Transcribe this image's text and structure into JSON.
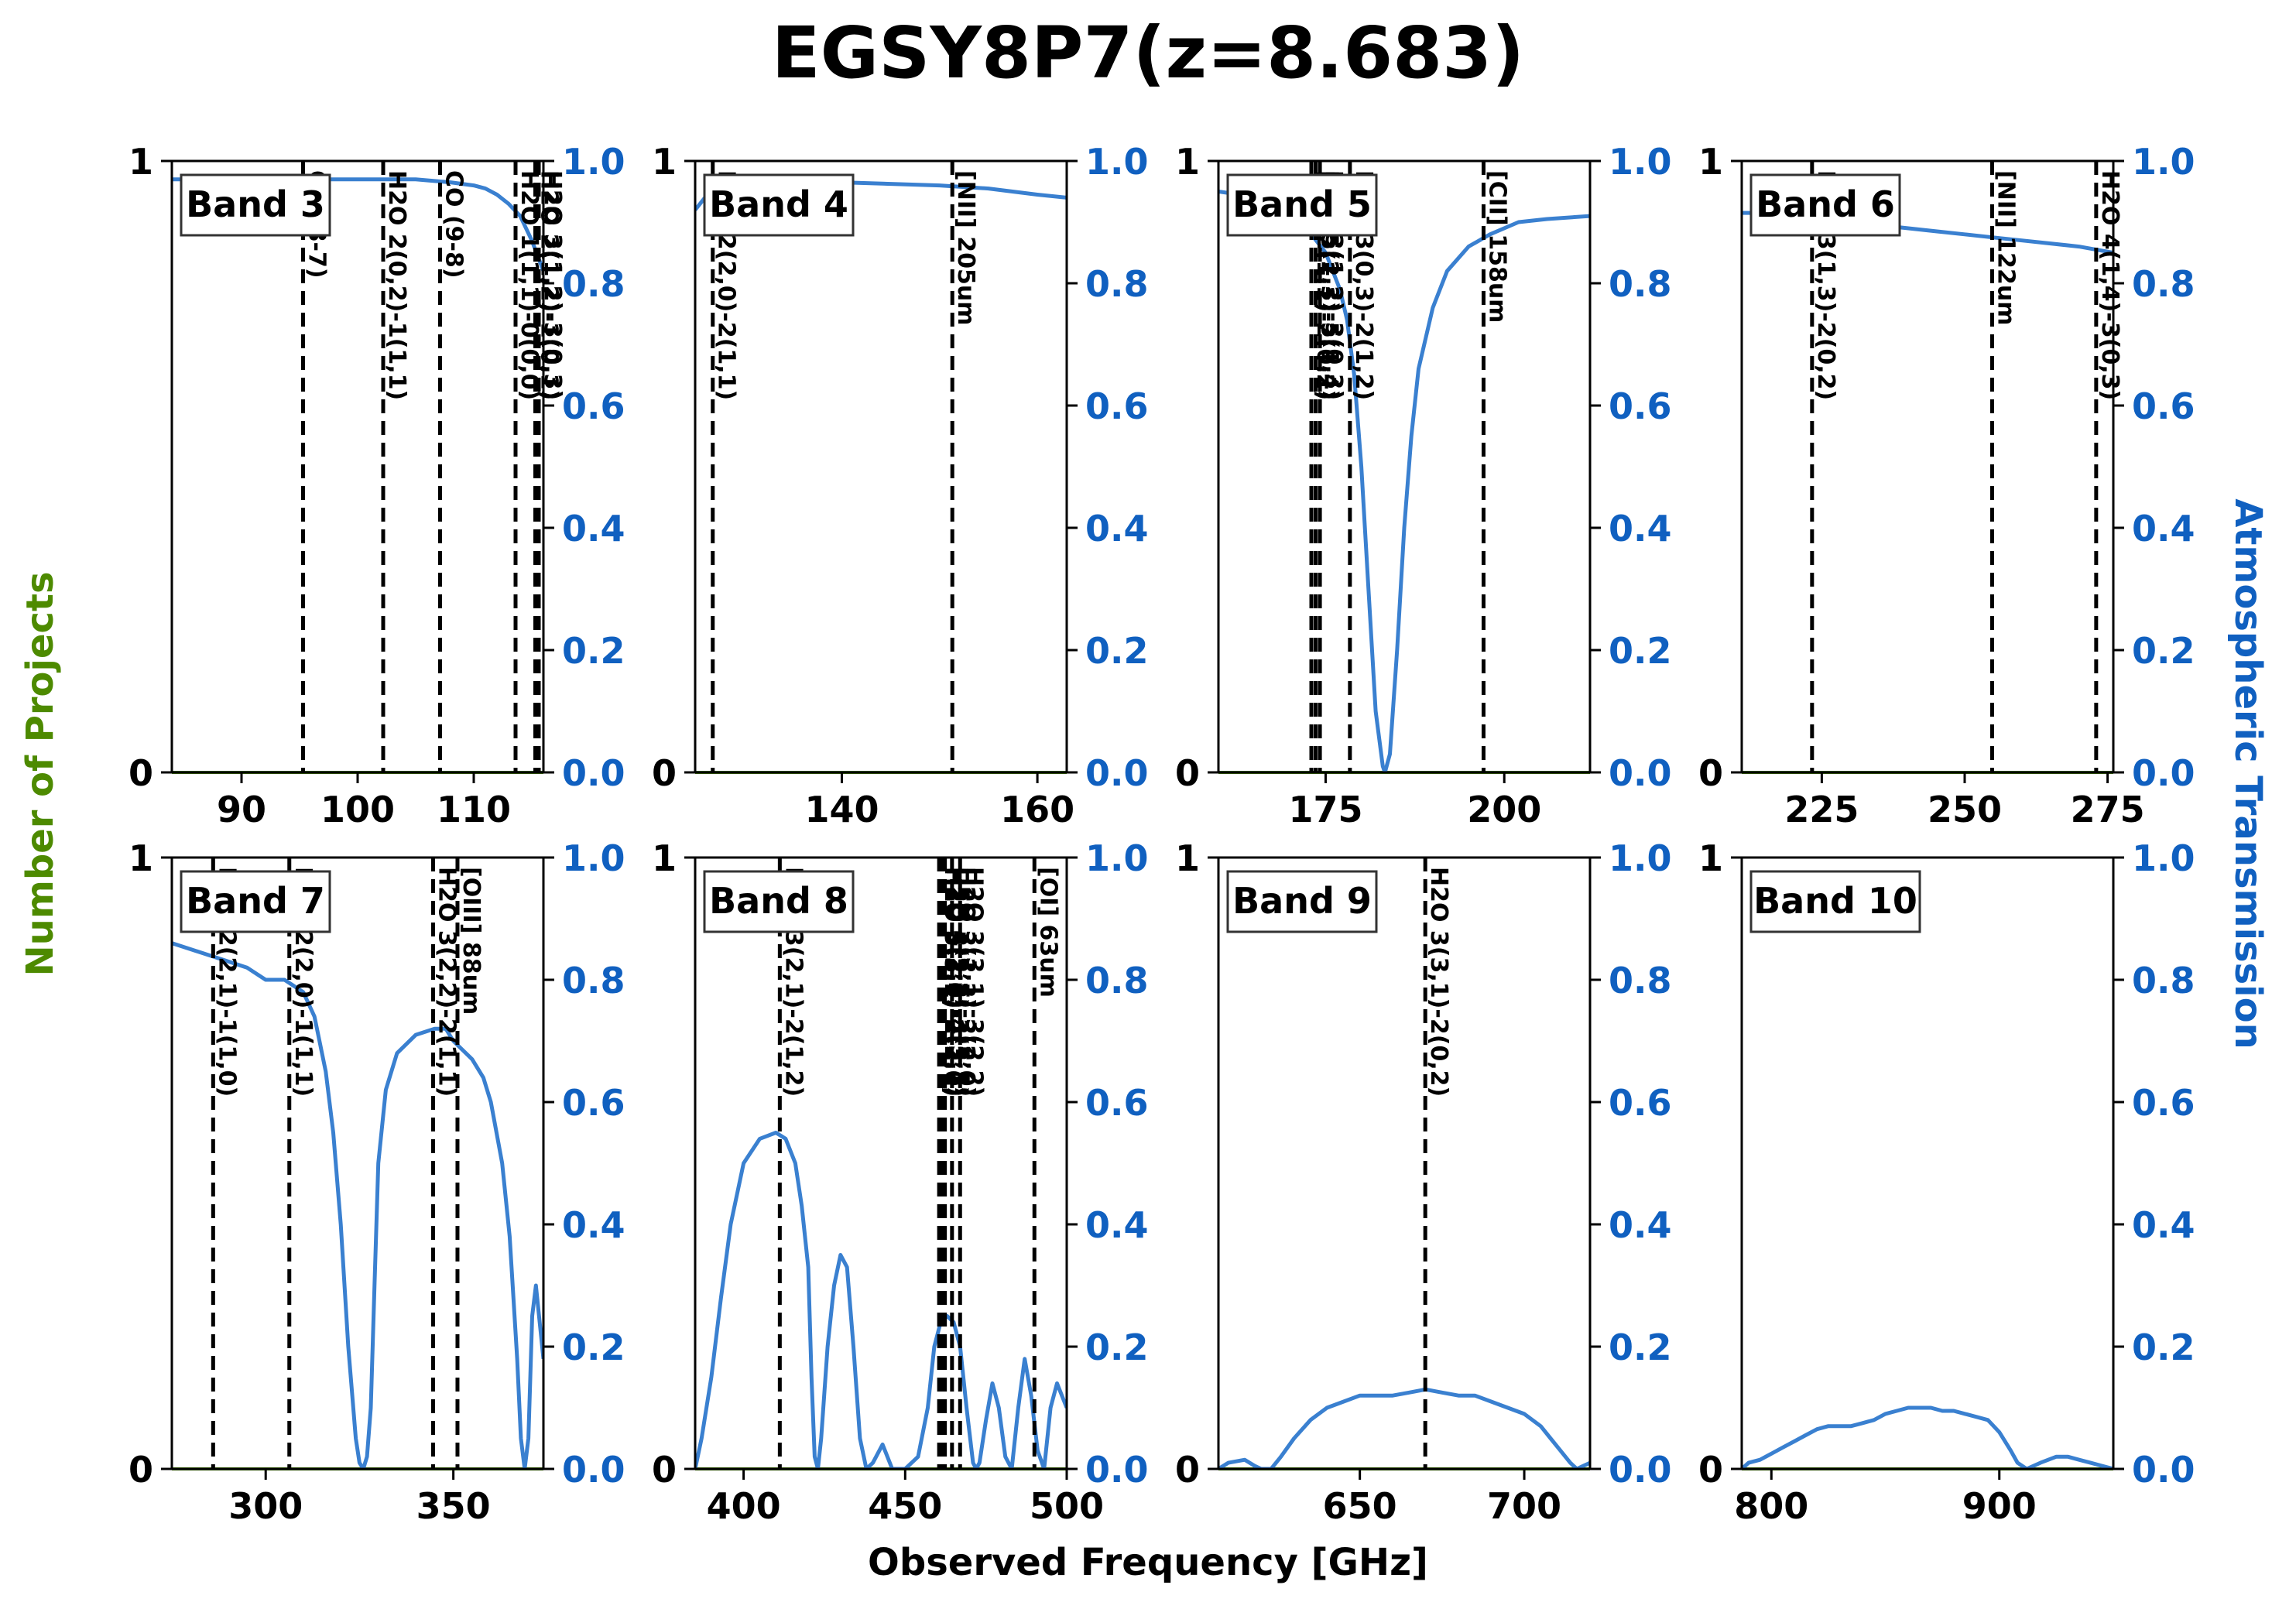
{
  "figure": {
    "title": "EGSY8P7(z=8.683)",
    "xlabel": "Observed Frequency [GHz]",
    "ylabel_left": "Number of Projects",
    "ylabel_right": "Atmospheric Transmission",
    "left_axis_color": "#4d8a00",
    "right_axis_color": "#1060c0",
    "curve_color": "#3a80d0",
    "line_color": "#000000"
  },
  "chart_data": [
    {
      "type": "line",
      "band": "Band 3",
      "xlim": [
        84,
        116
      ],
      "ylim_left": [
        0,
        1
      ],
      "ylim_right": [
        0,
        1
      ],
      "xticks": [
        90,
        100,
        110
      ],
      "left_ticks": [
        0,
        1
      ],
      "right_ticks": [
        "0.0",
        "0.2",
        "0.4",
        "0.6",
        "0.8",
        "1.0"
      ],
      "projects": 0,
      "lines": [
        {
          "freq": 95.3,
          "label": "CO (8-7)"
        },
        {
          "freq": 102.2,
          "label": "H2O 2(0,2)-1(1,1)"
        },
        {
          "freq": 107.1,
          "label": "CO (9-8)"
        },
        {
          "freq": 113.6,
          "label": "H2O 1(1,1)-0(0,0)"
        },
        {
          "freq": 115.3,
          "label": "H2O 2(1,2)-1(0,1)"
        },
        {
          "freq": 115.6,
          "label": "H2O 3(1,2)-3(0,3)"
        }
      ],
      "transmission": {
        "x": [
          84,
          90,
          100,
          105,
          108,
          110,
          111,
          112,
          113,
          114,
          115,
          116
        ],
        "y": [
          0.97,
          0.97,
          0.97,
          0.97,
          0.965,
          0.96,
          0.955,
          0.945,
          0.93,
          0.91,
          0.87,
          0.82
        ]
      }
    },
    {
      "type": "line",
      "band": "Band 4",
      "xlim": [
        125,
        163
      ],
      "ylim_left": [
        0,
        1
      ],
      "ylim_right": [
        0,
        1
      ],
      "xticks": [
        140,
        160
      ],
      "left_ticks": [
        0,
        1
      ],
      "right_ticks": [
        "0.0",
        "0.2",
        "0.4",
        "0.6",
        "0.8",
        "1.0"
      ],
      "projects": 0,
      "lines": [
        {
          "freq": 126.8,
          "label": "H2O 2(2,0)-2(1,1)"
        },
        {
          "freq": 151.3,
          "label": "[NII] 205um"
        }
      ],
      "transmission": {
        "x": [
          125,
          126,
          128,
          132,
          140,
          150,
          155,
          160,
          163
        ],
        "y": [
          0.92,
          0.94,
          0.955,
          0.96,
          0.965,
          0.96,
          0.955,
          0.945,
          0.94
        ]
      }
    },
    {
      "type": "line",
      "band": "Band 5",
      "xlim": [
        160,
        212
      ],
      "ylim_left": [
        0,
        1
      ],
      "ylim_right": [
        0,
        1
      ],
      "xticks": [
        175,
        200
      ],
      "left_ticks": [
        0,
        1
      ],
      "right_ticks": [
        "0.0",
        "0.2",
        "0.4",
        "0.6",
        "0.8",
        "1.0"
      ],
      "projects": 0,
      "lines": [
        {
          "freq": 173.0,
          "label": "H2O 2(1,1)-2(0,2)"
        },
        {
          "freq": 173.6,
          "label": "H2O 5(2,3)-5(1,4)"
        },
        {
          "freq": 174.2,
          "label": "H2O 3(1,2)-3(0,3)"
        },
        {
          "freq": 178.4,
          "label": "H2O 3(0,3)-2(1,2)"
        },
        {
          "freq": 197.1,
          "label": "[CII] 158um"
        }
      ],
      "transmission": {
        "x": [
          160,
          163,
          166,
          169,
          171,
          173,
          175,
          177,
          178,
          179,
          180,
          181,
          182,
          183,
          183.3,
          184,
          185,
          186,
          187,
          188,
          190,
          192,
          195,
          198,
          202,
          206,
          212
        ],
        "y": [
          0.95,
          0.945,
          0.935,
          0.92,
          0.905,
          0.88,
          0.85,
          0.79,
          0.74,
          0.65,
          0.5,
          0.3,
          0.1,
          0.01,
          0.0,
          0.03,
          0.2,
          0.4,
          0.55,
          0.66,
          0.76,
          0.82,
          0.86,
          0.88,
          0.9,
          0.905,
          0.91
        ]
      }
    },
    {
      "type": "line",
      "band": "Band 6",
      "xlim": [
        211,
        276
      ],
      "ylim_left": [
        0,
        1
      ],
      "ylim_right": [
        0,
        1
      ],
      "xticks": [
        225,
        250,
        275
      ],
      "left_ticks": [
        0,
        1
      ],
      "right_ticks": [
        "0.0",
        "0.2",
        "0.4",
        "0.6",
        "0.8",
        "1.0"
      ],
      "projects": 0,
      "lines": [
        {
          "freq": 223.3,
          "label": "H2O 3(1,3)-2(0,2)"
        },
        {
          "freq": 254.8,
          "label": "[NII] 122um"
        },
        {
          "freq": 273.0,
          "label": "H2O 4(1,4)-3(0,3)"
        }
      ],
      "transmission": {
        "x": [
          211,
          215,
          220,
          225,
          230,
          235,
          240,
          245,
          250,
          255,
          260,
          265,
          270,
          276
        ],
        "y": [
          0.915,
          0.915,
          0.912,
          0.905,
          0.9,
          0.895,
          0.89,
          0.885,
          0.88,
          0.875,
          0.87,
          0.865,
          0.86,
          0.85
        ]
      }
    },
    {
      "type": "line",
      "band": "Band 7",
      "xlim": [
        275,
        374
      ],
      "ylim_left": [
        0,
        1
      ],
      "ylim_right": [
        0,
        1
      ],
      "xticks": [
        300,
        350
      ],
      "left_ticks": [
        0,
        1
      ],
      "right_ticks": [
        "0.0",
        "0.2",
        "0.4",
        "0.6",
        "0.8",
        "1.0"
      ],
      "projects": 0,
      "lines": [
        {
          "freq": 286.0,
          "label": "H2O 2(2,1)-1(1,0)"
        },
        {
          "freq": 306.3,
          "label": "H2O 2(2,0)-1(1,1)"
        },
        {
          "freq": 344.6,
          "label": "H2O 3(2,2)-2(1,1)"
        },
        {
          "freq": 351.1,
          "label": "[OIII] 88um"
        }
      ],
      "transmission": {
        "x": [
          275,
          280,
          285,
          290,
          295,
          300,
          305,
          310,
          313,
          316,
          318,
          320,
          322,
          324,
          325,
          326,
          327,
          328,
          329,
          330,
          332,
          335,
          340,
          345,
          348,
          350,
          355,
          358,
          360,
          363,
          365,
          367,
          368,
          369,
          370,
          371,
          372,
          374
        ],
        "y": [
          0.86,
          0.85,
          0.84,
          0.83,
          0.82,
          0.8,
          0.8,
          0.78,
          0.74,
          0.65,
          0.55,
          0.4,
          0.2,
          0.05,
          0.01,
          0.0,
          0.02,
          0.1,
          0.3,
          0.5,
          0.62,
          0.68,
          0.71,
          0.72,
          0.72,
          0.7,
          0.67,
          0.64,
          0.6,
          0.5,
          0.38,
          0.18,
          0.05,
          0.0,
          0.05,
          0.25,
          0.3,
          0.18
        ]
      }
    },
    {
      "type": "line",
      "band": "Band 8",
      "xlim": [
        385,
        500
      ],
      "ylim_left": [
        0,
        1
      ],
      "ylim_right": [
        0,
        1
      ],
      "xticks": [
        400,
        450,
        500
      ],
      "left_ticks": [
        0,
        1
      ],
      "right_ticks": [
        "0.0",
        "0.2",
        "0.4",
        "0.6",
        "0.8",
        "1.0"
      ],
      "projects": 0,
      "lines": [
        {
          "freq": 411.2,
          "label": "H2O 3(2,1)-2(1,2)"
        },
        {
          "freq": 460.5,
          "label": "H2O 3(3,1)-2(2,0)"
        },
        {
          "freq": 461.0,
          "label": "H2O 3(3,0)-2(2,1)"
        },
        {
          "freq": 461.6,
          "label": "H2O 5(2,3)-4(3,2)"
        },
        {
          "freq": 462.3,
          "label": "H2O 4(2,2)-3(3,1)"
        },
        {
          "freq": 464.5,
          "label": "H2O 3(1,3)-2(2,0)"
        },
        {
          "freq": 467.0,
          "label": "H2O 3(3,1)-3(2,2)"
        },
        {
          "freq": 490.0,
          "label": "[OI] 63um"
        }
      ],
      "transmission": {
        "x": [
          385,
          387,
          390,
          393,
          396,
          400,
          405,
          410,
          413,
          416,
          418,
          420,
          421,
          422,
          423,
          424,
          426,
          428,
          430,
          432,
          434,
          436,
          438,
          440,
          443,
          446,
          450,
          454,
          457,
          459,
          461,
          463,
          465,
          467,
          469,
          471,
          472,
          473,
          475,
          477,
          479,
          481,
          483,
          485,
          487,
          489,
          491,
          493,
          495,
          497,
          500
        ],
        "y": [
          0.0,
          0.05,
          0.15,
          0.28,
          0.4,
          0.5,
          0.54,
          0.55,
          0.54,
          0.5,
          0.43,
          0.33,
          0.15,
          0.02,
          0.0,
          0.05,
          0.2,
          0.3,
          0.35,
          0.33,
          0.2,
          0.05,
          0.0,
          0.01,
          0.04,
          0.0,
          0.0,
          0.02,
          0.1,
          0.2,
          0.24,
          0.25,
          0.24,
          0.2,
          0.1,
          0.01,
          0.0,
          0.01,
          0.08,
          0.14,
          0.1,
          0.02,
          0.0,
          0.1,
          0.18,
          0.12,
          0.03,
          0.0,
          0.1,
          0.14,
          0.1
        ]
      }
    },
    {
      "type": "line",
      "band": "Band 9",
      "xlim": [
        607,
        720
      ],
      "ylim_left": [
        0,
        1
      ],
      "ylim_right": [
        0,
        1
      ],
      "xticks": [
        650,
        700
      ],
      "left_ticks": [
        0,
        1
      ],
      "right_ticks": [
        "0.0",
        "0.2",
        "0.4",
        "0.6",
        "0.8",
        "1.0"
      ],
      "projects": 0,
      "lines": [
        {
          "freq": 669.9,
          "label": "H2O 3(3,1)-2(0,2)"
        }
      ],
      "transmission": {
        "x": [
          607,
          610,
          615,
          618,
          620,
          623,
          626,
          630,
          635,
          640,
          645,
          650,
          655,
          660,
          665,
          670,
          675,
          680,
          685,
          690,
          695,
          700,
          705,
          708,
          711,
          714,
          716,
          718,
          720
        ],
        "y": [
          0.0,
          0.01,
          0.015,
          0.005,
          0.0,
          0.0,
          0.02,
          0.05,
          0.08,
          0.1,
          0.11,
          0.12,
          0.12,
          0.12,
          0.125,
          0.13,
          0.125,
          0.12,
          0.12,
          0.11,
          0.1,
          0.09,
          0.07,
          0.05,
          0.03,
          0.01,
          0.0,
          0.005,
          0.01
        ]
      }
    },
    {
      "type": "line",
      "band": "Band 10",
      "xlim": [
        787,
        950
      ],
      "ylim_left": [
        0,
        1
      ],
      "ylim_right": [
        0,
        1
      ],
      "xticks": [
        800,
        900
      ],
      "left_ticks": [
        0,
        1
      ],
      "right_ticks": [
        "0.0",
        "0.2",
        "0.4",
        "0.6",
        "0.8",
        "1.0"
      ],
      "projects": 0,
      "lines": [],
      "transmission": {
        "x": [
          787,
          790,
          795,
          800,
          805,
          810,
          815,
          820,
          825,
          830,
          835,
          840,
          845,
          850,
          855,
          860,
          865,
          870,
          875,
          880,
          885,
          890,
          895,
          900,
          905,
          908,
          912,
          918,
          925,
          930,
          935,
          940,
          945,
          950
        ],
        "y": [
          0.0,
          0.01,
          0.015,
          0.025,
          0.035,
          0.045,
          0.055,
          0.065,
          0.07,
          0.07,
          0.07,
          0.075,
          0.08,
          0.09,
          0.095,
          0.1,
          0.1,
          0.1,
          0.095,
          0.095,
          0.09,
          0.085,
          0.08,
          0.06,
          0.03,
          0.01,
          0.0,
          0.01,
          0.02,
          0.02,
          0.015,
          0.01,
          0.005,
          0.0
        ]
      }
    }
  ]
}
